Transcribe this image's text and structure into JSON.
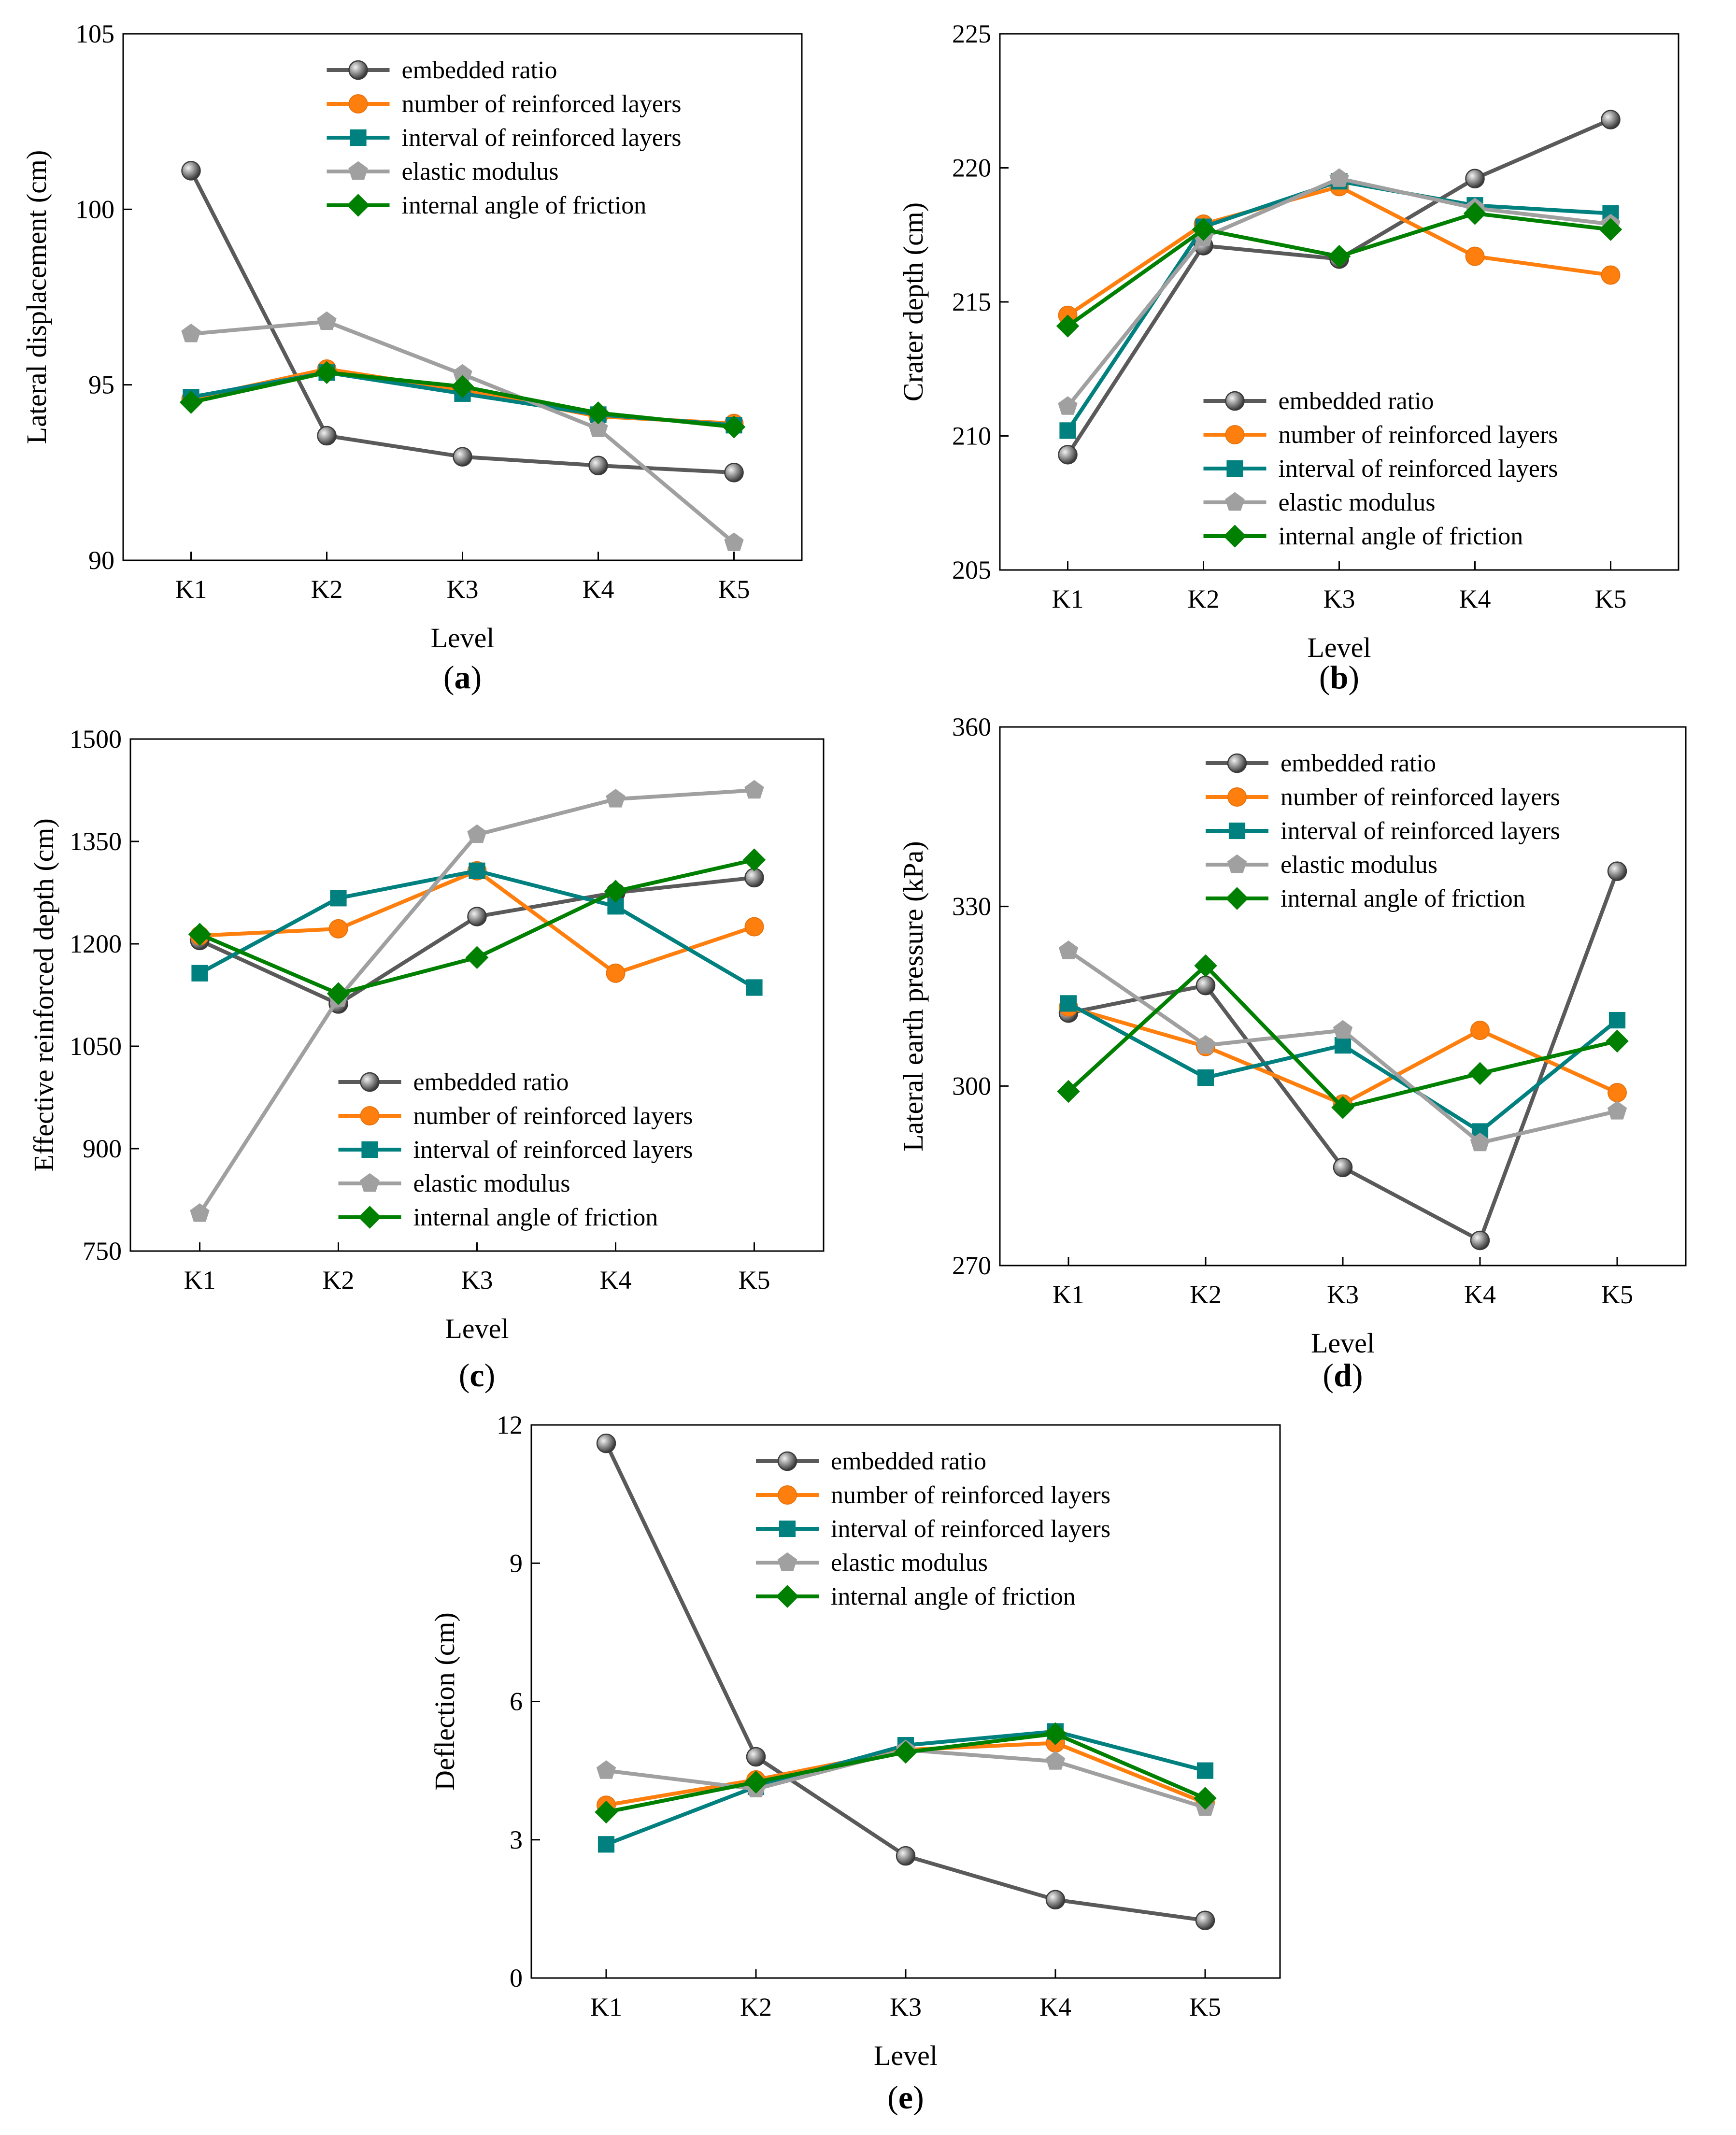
{
  "figure": {
    "series_names": [
      "embedded ratio",
      "number of reinforced layers",
      "interval of reinforced layers",
      "elastic modulus",
      "internal angle of friction"
    ],
    "series_colors": [
      "#5a5a5a",
      "#ff7f0e",
      "#00807f",
      "#a0a0a0",
      "#008000"
    ],
    "series_markers": [
      "circle-sphere",
      "circle",
      "square",
      "pentagon",
      "diamond"
    ]
  },
  "chart_data": [
    {
      "panel": "a",
      "panel_label": "(a)",
      "type": "line",
      "categories": [
        "K1",
        "K2",
        "K3",
        "K4",
        "K5"
      ],
      "xlabel": "Level",
      "ylabel": "Lateral displacement (cm)",
      "ylim": [
        90,
        105
      ],
      "yticks": [
        90,
        95,
        100,
        105
      ],
      "legend_position": "top-center",
      "series": [
        {
          "name": "embedded ratio",
          "values": [
            101.1,
            93.55,
            92.95,
            92.7,
            92.5
          ]
        },
        {
          "name": "number of reinforced layers",
          "values": [
            94.6,
            95.45,
            94.85,
            94.1,
            93.9
          ]
        },
        {
          "name": "interval of reinforced layers",
          "values": [
            94.65,
            95.35,
            94.75,
            94.15,
            93.85
          ]
        },
        {
          "name": "elastic modulus",
          "values": [
            96.45,
            96.8,
            95.3,
            93.75,
            90.5
          ]
        },
        {
          "name": "internal angle of friction",
          "values": [
            94.5,
            95.35,
            94.95,
            94.2,
            93.8
          ]
        }
      ]
    },
    {
      "panel": "b",
      "panel_label": "(b)",
      "type": "line",
      "categories": [
        "K1",
        "K2",
        "K3",
        "K4",
        "K5"
      ],
      "xlabel": "Level",
      "ylabel": "Crater depth (cm)",
      "ylim": [
        205,
        225
      ],
      "yticks": [
        205,
        210,
        215,
        220,
        225
      ],
      "legend_position": "bottom-center",
      "series": [
        {
          "name": "embedded ratio",
          "values": [
            209.3,
            217.1,
            216.6,
            219.6,
            221.8
          ]
        },
        {
          "name": "number of reinforced layers",
          "values": [
            214.5,
            217.9,
            219.3,
            216.7,
            216.0
          ]
        },
        {
          "name": "interval of reinforced layers",
          "values": [
            210.2,
            217.8,
            219.5,
            218.6,
            218.3
          ]
        },
        {
          "name": "elastic modulus",
          "values": [
            211.1,
            217.4,
            219.6,
            218.5,
            217.9
          ]
        },
        {
          "name": "internal angle of friction",
          "values": [
            214.1,
            217.7,
            216.7,
            218.3,
            217.7
          ]
        }
      ]
    },
    {
      "panel": "c",
      "panel_label": "(c)",
      "type": "line",
      "categories": [
        "K1",
        "K2",
        "K3",
        "K4",
        "K5"
      ],
      "xlabel": "Level",
      "ylabel": "Effective reinforced depth (cm)",
      "ylim": [
        750,
        1500
      ],
      "yticks": [
        750,
        900,
        1050,
        1200,
        1350,
        1500
      ],
      "legend_position": "bottom-center",
      "series": [
        {
          "name": "embedded ratio",
          "values": [
            1205,
            1112,
            1240,
            1275,
            1297
          ]
        },
        {
          "name": "number of reinforced layers",
          "values": [
            1212,
            1222,
            1307,
            1157,
            1225
          ]
        },
        {
          "name": "interval of reinforced layers",
          "values": [
            1157,
            1267,
            1307,
            1255,
            1136
          ]
        },
        {
          "name": "elastic modulus",
          "values": [
            805,
            1120,
            1360,
            1412,
            1425
          ]
        },
        {
          "name": "internal angle of friction",
          "values": [
            1214,
            1127,
            1180,
            1277,
            1323
          ]
        }
      ]
    },
    {
      "panel": "d",
      "panel_label": "(d)",
      "type": "line",
      "categories": [
        "K1",
        "K2",
        "K3",
        "K4",
        "K5"
      ],
      "xlabel": "Level",
      "ylabel": "Lateral earth pressure (kPa)",
      "ylim": [
        270,
        360
      ],
      "yticks": [
        270,
        300,
        330,
        360
      ],
      "legend_position": "top-center",
      "series": [
        {
          "name": "embedded ratio",
          "values": [
            312.2,
            316.8,
            286.4,
            274.2,
            335.9
          ]
        },
        {
          "name": "number of reinforced layers",
          "values": [
            313.2,
            306.6,
            297.0,
            309.3,
            298.9
          ]
        },
        {
          "name": "interval of reinforced layers",
          "values": [
            313.8,
            301.4,
            306.8,
            292.4,
            311.0
          ]
        },
        {
          "name": "elastic modulus",
          "values": [
            322.6,
            306.8,
            309.3,
            290.5,
            295.8
          ]
        },
        {
          "name": "internal angle of friction",
          "values": [
            299.1,
            320.1,
            296.4,
            302.1,
            307.5
          ]
        }
      ]
    },
    {
      "panel": "e",
      "panel_label": "(e)",
      "type": "line",
      "categories": [
        "K1",
        "K2",
        "K3",
        "K4",
        "K5"
      ],
      "xlabel": "Level",
      "ylabel": "Deflection (cm)",
      "ylim": [
        0,
        12
      ],
      "yticks": [
        0,
        3,
        6,
        9,
        12
      ],
      "legend_position": "top-center",
      "series": [
        {
          "name": "embedded ratio",
          "values": [
            11.6,
            4.8,
            2.65,
            1.7,
            1.25
          ]
        },
        {
          "name": "number of reinforced layers",
          "values": [
            3.75,
            4.3,
            4.95,
            5.1,
            3.8
          ]
        },
        {
          "name": "interval of reinforced layers",
          "values": [
            2.9,
            4.15,
            5.05,
            5.35,
            4.5
          ]
        },
        {
          "name": "elastic modulus",
          "values": [
            4.5,
            4.1,
            4.95,
            4.7,
            3.7
          ]
        },
        {
          "name": "internal angle of friction",
          "values": [
            3.6,
            4.25,
            4.9,
            5.3,
            3.9
          ]
        }
      ]
    }
  ]
}
